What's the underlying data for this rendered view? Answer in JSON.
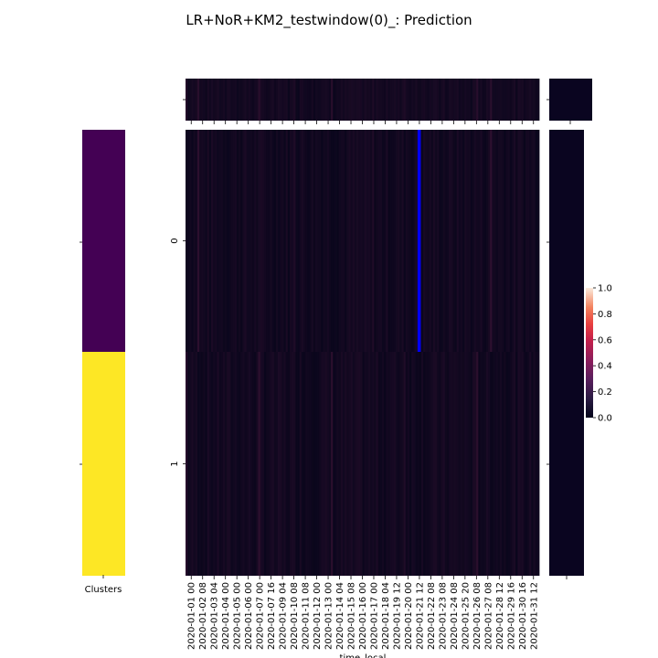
{
  "chart_data": {
    "type": "heatmap",
    "title": "LR+NoR+KM2_testwindow(0)_: Prediction",
    "xlabel": "time_local",
    "ylabel": "",
    "x_tick_labels": [
      "2020-01-01 00",
      "2020-01-02 08",
      "2020-01-03 04",
      "2020-01-04 00",
      "2020-01-05 00",
      "2020-01-06 00",
      "2020-01-07 00",
      "2020-01-07 16",
      "2020-01-09 04",
      "2020-01-10 08",
      "2020-01-11 08",
      "2020-01-12 00",
      "2020-01-13 00",
      "2020-01-14 04",
      "2020-01-15 08",
      "2020-01-16 00",
      "2020-01-17 00",
      "2020-01-18 04",
      "2020-01-19 12",
      "2020-01-20 00",
      "2020-01-21 12",
      "2020-01-22 08",
      "2020-01-23 08",
      "2020-01-24 08",
      "2020-01-25 20",
      "2020-01-26 08",
      "2020-01-27 08",
      "2020-01-28 12",
      "2020-01-29 16",
      "2020-01-30 16",
      "2020-01-31 12"
    ],
    "y_tick_labels": [
      "0",
      "1"
    ],
    "colorbar": {
      "colormap": "rocket",
      "range": [
        0.0,
        1.0
      ],
      "ticks": [
        "0.0",
        "0.2",
        "0.4",
        "0.6",
        "0.8",
        "1.0"
      ]
    },
    "row_clusters": {
      "label": "Clusters",
      "colors": [
        "#440154",
        "#fde725"
      ]
    },
    "highlight": {
      "row": "0",
      "column_label": "2020-01-21 12",
      "color": "#0000ff"
    },
    "notes_visible_values": "All cells are near 0 (dark); a few faint columns reach roughly 0.05–0.15"
  }
}
